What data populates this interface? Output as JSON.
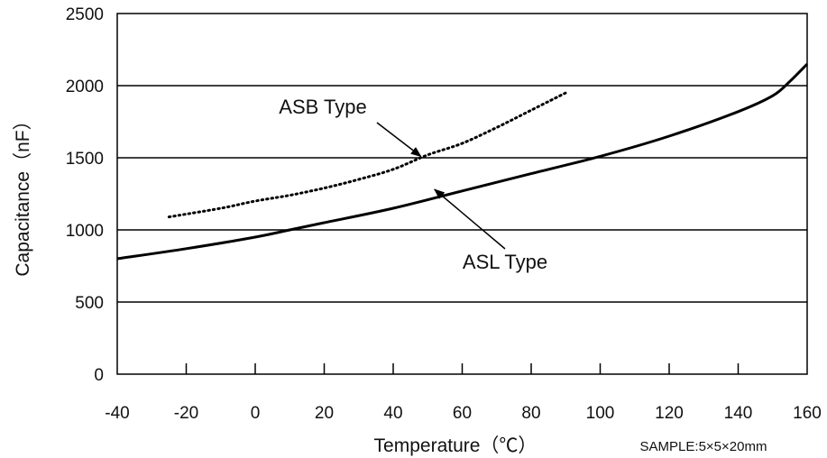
{
  "chart_data": {
    "type": "line",
    "title": "",
    "xlabel": "Temperature（℃）",
    "ylabel": "Capacitance（nF）",
    "xlim": [
      -40,
      160
    ],
    "ylim": [
      0,
      2500
    ],
    "x_ticks": [
      -40,
      -20,
      0,
      20,
      40,
      60,
      80,
      100,
      120,
      140,
      160
    ],
    "y_ticks": [
      0,
      500,
      1000,
      1500,
      2000,
      2500
    ],
    "grid": "horizontal",
    "note": "SAMPLE:5×5×20mm",
    "series": [
      {
        "name": "ASL Type",
        "style": "solid",
        "color": "#000000",
        "x": [
          -40,
          -20,
          0,
          10,
          20,
          40,
          60,
          80,
          100,
          120,
          140,
          150,
          155,
          160
        ],
        "y": [
          800,
          870,
          950,
          1000,
          1050,
          1150,
          1270,
          1390,
          1510,
          1650,
          1820,
          1930,
          2030,
          2150
        ]
      },
      {
        "name": "ASB Type",
        "style": "dotted",
        "color": "#000000",
        "x": [
          -25,
          -10,
          0,
          10,
          20,
          30,
          40,
          50,
          60,
          70,
          80,
          90
        ],
        "y": [
          1090,
          1150,
          1200,
          1240,
          1290,
          1350,
          1420,
          1520,
          1600,
          1710,
          1830,
          1950
        ]
      }
    ],
    "annotations": [
      {
        "text": "ASB Type",
        "arrow_to": [
          48,
          1510
        ]
      },
      {
        "text": "ASL Type",
        "arrow_to": [
          52,
          1280
        ]
      }
    ]
  }
}
